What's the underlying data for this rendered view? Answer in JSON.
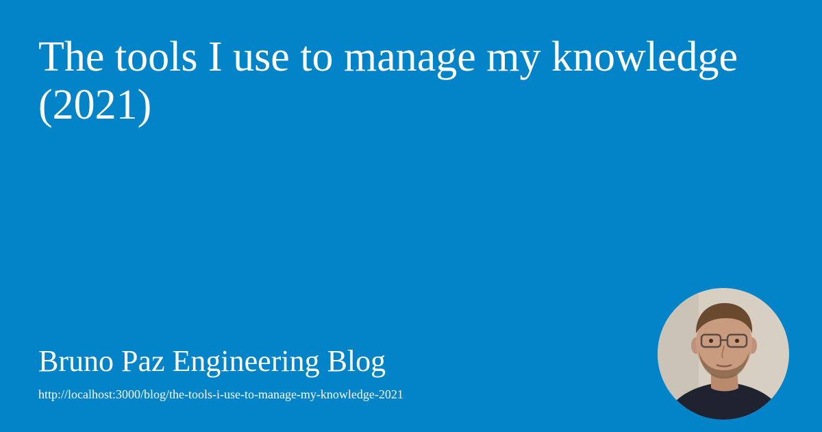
{
  "card": {
    "title_line_1": "The tools I use to manage my knowledge",
    "title_line_2": "(2021)",
    "blog_name": "Bruno Paz Engineering Blog",
    "url": "http://localhost:3000/blog/the-tools-i-use-to-manage-my-knowledge-2021",
    "avatar_icon": "author-avatar-photo"
  },
  "colors": {
    "background": "#0383c8",
    "text": "#ffffff",
    "avatar_wall": "#d6cfc2",
    "avatar_skin": "#c99c80",
    "avatar_hair": "#6a4a2e",
    "avatar_shirt": "#1f2330"
  }
}
